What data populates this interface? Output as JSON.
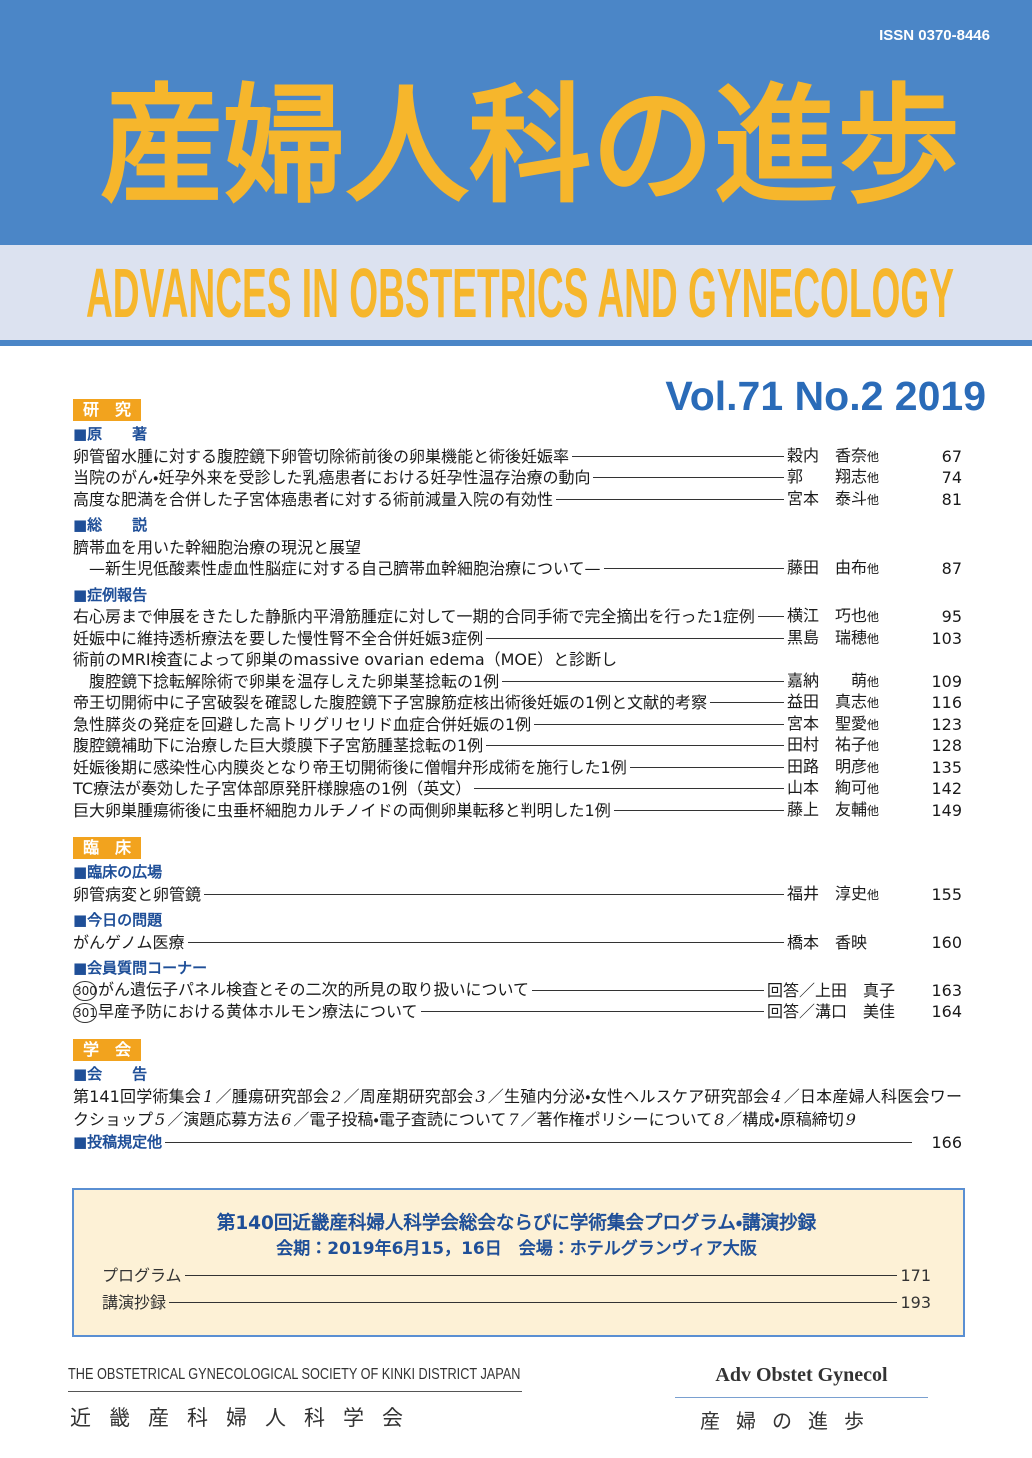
{
  "header": {
    "issn": "ISSN 0370-8446",
    "title_ja": "産婦人科の進歩",
    "title_en": "ADVANCES IN OBSTETRICS AND GYNECOLOGY"
  },
  "issue": "Vol.71 No.2 2019",
  "sections": [
    {
      "label": "研　究",
      "subsections": [
        {
          "label": "■原　　著",
          "entries": [
            {
              "lines": [
                "卵管留水腫に対する腹腔鏡下卵管切除術前後の卵巣機能と術後妊娠率"
              ],
              "author": "穀内　香奈",
              "suffix": "他",
              "page": 67
            },
            {
              "lines": [
                "当院のがん・妊孕外来を受診した乳癌患者における妊孕性温存治療の動向"
              ],
              "author": "郭　　翔志",
              "suffix": "他",
              "page": 74
            },
            {
              "lines": [
                "高度な肥満を合併した子宮体癌患者に対する術前減量入院の有効性"
              ],
              "author": "宮本　泰斗",
              "suffix": "他",
              "page": 81
            }
          ]
        },
        {
          "label": "■総　　説",
          "entries": [
            {
              "lines": [
                "臍帯血を用いた幹細胞治療の現況と展望",
                "—新生児低酸素性虚血性脳症に対する自己臍帯血幹細胞治療について—"
              ],
              "author": "藤田　由布",
              "suffix": "他",
              "page": 87
            }
          ]
        },
        {
          "label": "■症例報告",
          "entries": [
            {
              "lines": [
                "右心房まで伸展をきたした静脈内平滑筋腫症に対して一期的合同手術で完全摘出を行った1症例"
              ],
              "author": "横江　巧也",
              "suffix": "他",
              "page": 95
            },
            {
              "lines": [
                "妊娠中に維持透析療法を要した慢性腎不全合併妊娠3症例"
              ],
              "author": "黒島　瑞穂",
              "suffix": "他",
              "page": 103
            },
            {
              "lines": [
                "術前のMRI検査によって卵巣のmassive ovarian edema（MOE）と診断し",
                "腹腔鏡下捻転解除術で卵巣を温存しえた卵巣茎捻転の1例"
              ],
              "author": "嘉納　　萌",
              "suffix": "他",
              "page": 109
            },
            {
              "lines": [
                "帝王切開術中に子宮破裂を確認した腹腔鏡下子宮腺筋症核出術後妊娠の1例と文献的考察"
              ],
              "author": "益田　真志",
              "suffix": "他",
              "page": 116
            },
            {
              "lines": [
                "急性膵炎の発症を回避した高トリグリセリド血症合併妊娠の1例"
              ],
              "author": "宮本　聖愛",
              "suffix": "他",
              "page": 123
            },
            {
              "lines": [
                "腹腔鏡補助下に治療した巨大漿膜下子宮筋腫茎捻転の1例"
              ],
              "author": "田村　祐子",
              "suffix": "他",
              "page": 128
            },
            {
              "lines": [
                "妊娠後期に感染性心内膜炎となり帝王切開術後に僧帽弁形成術を施行した1例"
              ],
              "author": "田路　明彦",
              "suffix": "他",
              "page": 135
            },
            {
              "lines": [
                "TC療法が奏効した子宮体部原発肝様腺癌の1例（英文）"
              ],
              "author": "山本　絢可",
              "suffix": "他",
              "page": 142
            },
            {
              "lines": [
                "巨大卵巣腫瘍術後に虫垂杯細胞カルチノイドの両側卵巣転移と判明した1例"
              ],
              "author": "藤上　友輔",
              "suffix": "他",
              "page": 149
            }
          ]
        }
      ]
    },
    {
      "label": "臨　床",
      "subsections": [
        {
          "label": "■臨床の広場",
          "entries": [
            {
              "lines": [
                "卵管病変と卵管鏡"
              ],
              "author": "福井　淳史",
              "suffix": "他",
              "page": 155
            }
          ]
        },
        {
          "label": "■今日の問題",
          "entries": [
            {
              "lines": [
                "がんゲノム医療"
              ],
              "author": "橋本　香映",
              "page": 160
            }
          ]
        },
        {
          "label": "■会員質問コーナー",
          "entries": [
            {
              "number": 300,
              "lines": [
                "がん遺伝子パネル検査とその二次的所見の取り扱いについて"
              ],
              "author": "回答／上田　真子",
              "page": 163
            },
            {
              "number": 301,
              "lines": [
                "早産予防における黄体ホルモン療法について"
              ],
              "author": "回答／溝口　美佳",
              "page": 164
            }
          ]
        }
      ]
    },
    {
      "label": "学　会",
      "subsections": [
        {
          "label": "■会　　告",
          "notices": [
            {
              "text": "第141回学術集会",
              "num": 1
            },
            {
              "text": "／腫瘍研究部会",
              "num": 2
            },
            {
              "text": "／周産期研究部会",
              "num": 3
            },
            {
              "text": "／生殖内分泌・女性ヘルスケア研究部会",
              "num": 4
            },
            {
              "text": "／日本産婦人科医会ワークショップ",
              "num": 5
            },
            {
              "text": "／演題応募方法",
              "num": 6
            },
            {
              "text": "／電子投稿・電子査読について",
              "num": 7
            },
            {
              "text": "／著作権ポリシーについて",
              "num": 8
            },
            {
              "text": "／構成・原稿締切",
              "num": 9
            }
          ]
        },
        {
          "label": "■投稿規定他",
          "page": 166
        }
      ]
    }
  ],
  "box": {
    "title": "第140回近畿産科婦人科学会総会ならびに学術集会プログラム・講演抄録",
    "subtitle": "会期：2019年6月15，16日　会場：ホテルグランヴィア大阪",
    "entries": [
      {
        "title": "プログラム",
        "page": 171
      },
      {
        "title": "講演抄録",
        "page": 193
      }
    ]
  },
  "footer": {
    "society_en": "THE OBSTETRICAL GYNECOLOGICAL SOCIETY OF KINKI DISTRICT JAPAN",
    "society_ja": "近畿産科婦人科学会",
    "abbrev_en": "Adv Obstet Gynecol",
    "abbrev_ja": "産婦の進歩"
  }
}
